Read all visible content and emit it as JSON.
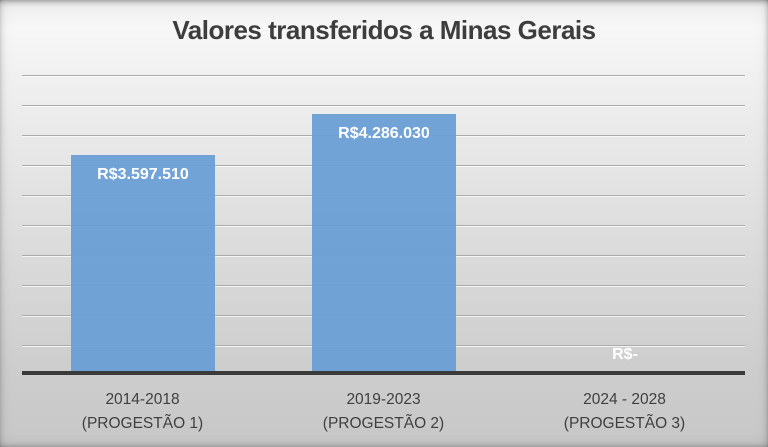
{
  "title": "Valores transferidos a Minas Gerais",
  "chart_data": {
    "type": "bar",
    "title": "Valores transferidos a Minas Gerais",
    "categories": [
      {
        "line1": "2014-2018",
        "line2": "(PROGESTÃO 1)"
      },
      {
        "line1": "2019-2023",
        "line2": "(PROGESTÃO 2)"
      },
      {
        "line1": "2024 - 2028",
        "line2": "(PROGESTÃO 3)"
      }
    ],
    "values": [
      3597510,
      4286030,
      0
    ],
    "data_labels": [
      "R$3.597.510",
      "R$4.286.030",
      "R$-"
    ],
    "currency": "R$",
    "ylim": [
      0,
      5000000
    ],
    "gridline_step": 500000,
    "grid": "on",
    "legend": "none",
    "y_tick_labels": "none",
    "colors": {
      "bar": "#69 9ED6",
      "bar_fill": "#699ED6",
      "data_label": "#FFFFFF",
      "axis_line": "#3A3A3A",
      "gridline": "#ABABAB",
      "title_text": "#3D3D3D",
      "category_text": "#3F3F3F",
      "background_top": "#F7F7F7",
      "background_bottom": "#C7C7C7"
    }
  }
}
